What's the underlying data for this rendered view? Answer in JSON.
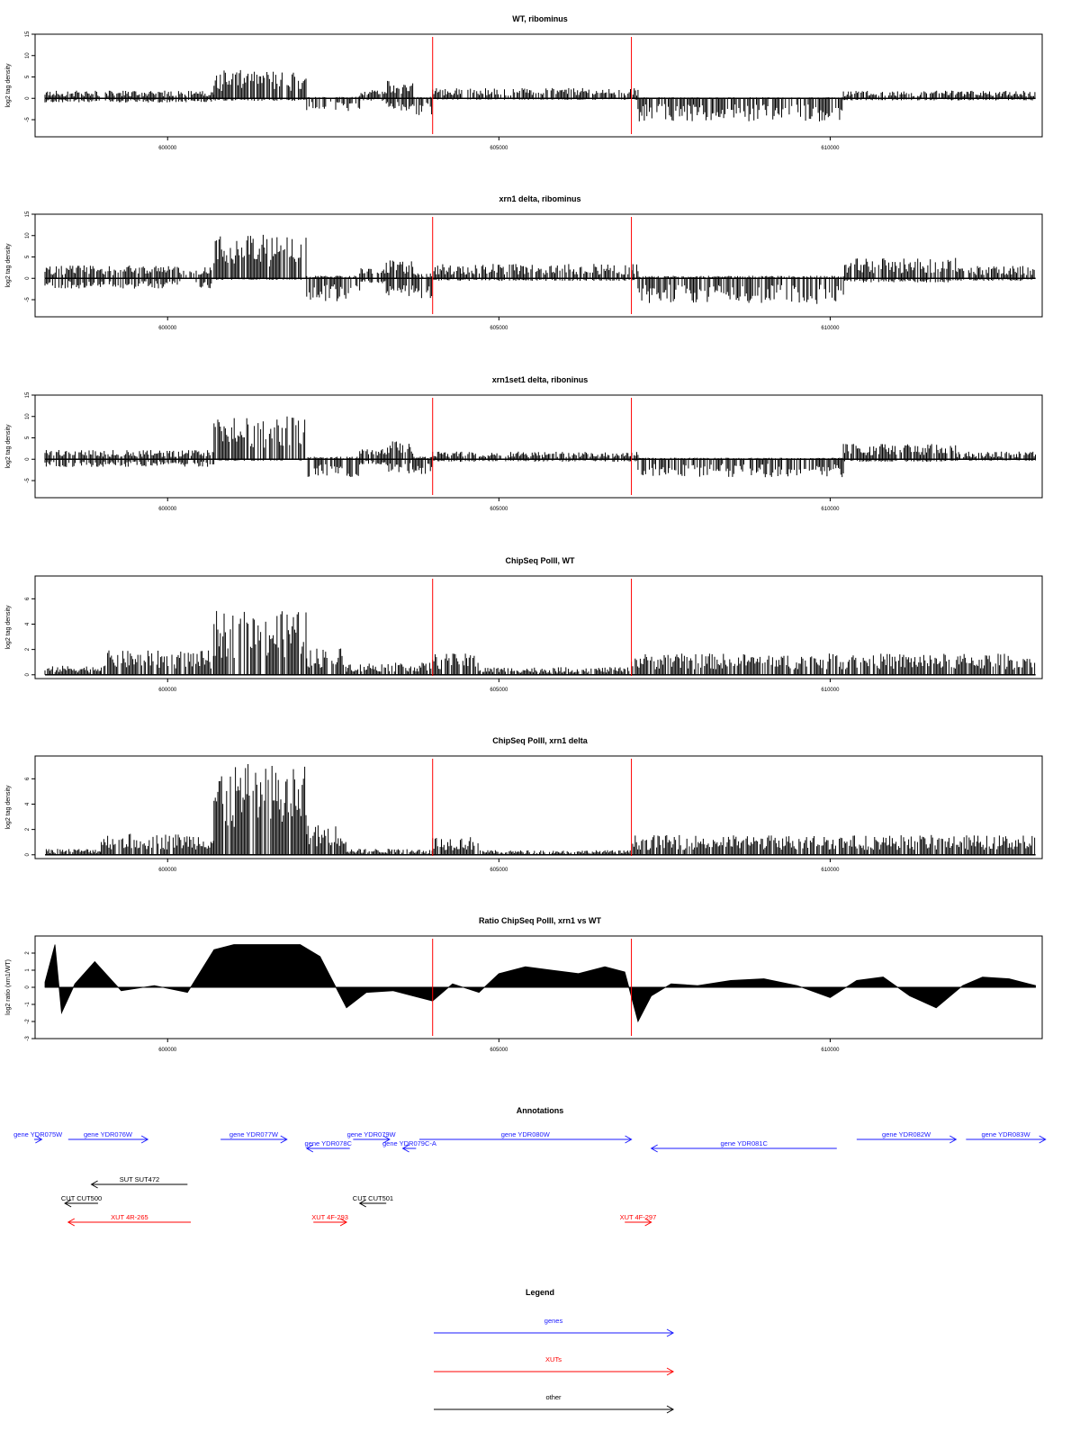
{
  "colors": {
    "marker": "#ff0000",
    "genes": "#1a1aff",
    "xuts": "#ff0000",
    "other": "#000000",
    "axis": "#000000"
  },
  "chart_data": [
    {
      "type": "bar",
      "title": "WT, ribominus",
      "ylabel": "log2 tag density",
      "xlim": [
        598000,
        613200
      ],
      "ylim": [
        -9,
        15
      ],
      "yticks": [
        -5,
        0,
        5,
        10,
        15
      ],
      "xticks": [
        600000,
        605000,
        610000
      ],
      "markers": [
        604000,
        607000
      ],
      "segments": [
        {
          "from": 598150,
          "to": 600700,
          "pos": 1.5,
          "neg": -0.8
        },
        {
          "from": 600700,
          "to": 602100,
          "pos": 5.5,
          "neg": -0.5
        },
        {
          "from": 602100,
          "to": 602900,
          "pos": 0.3,
          "neg": -2.5
        },
        {
          "from": 602900,
          "to": 603300,
          "pos": 1.8,
          "neg": -0.5
        },
        {
          "from": 603300,
          "to": 603700,
          "pos": 3.5,
          "neg": -2.5
        },
        {
          "from": 603700,
          "to": 604000,
          "pos": 0.3,
          "neg": -3.5
        },
        {
          "from": 604000,
          "to": 607100,
          "pos": 2.0,
          "neg": -0.3
        },
        {
          "from": 607100,
          "to": 610200,
          "pos": 0.2,
          "neg": -4.5
        },
        {
          "from": 610200,
          "to": 613100,
          "pos": 1.5,
          "neg": -0.4
        }
      ]
    },
    {
      "type": "bar",
      "title": "xrn1 delta, ribominus",
      "ylabel": "log2 tag density",
      "xlim": [
        598000,
        613200
      ],
      "ylim": [
        -9,
        15
      ],
      "yticks": [
        -5,
        0,
        5,
        10,
        15
      ],
      "xticks": [
        600000,
        605000,
        610000
      ],
      "markers": [
        604000,
        607000
      ],
      "segments": [
        {
          "from": 598150,
          "to": 600700,
          "pos": 2.5,
          "neg": -2.0
        },
        {
          "from": 600700,
          "to": 602100,
          "pos": 8.5,
          "neg": -0.3
        },
        {
          "from": 602100,
          "to": 602900,
          "pos": 0.5,
          "neg": -4.5
        },
        {
          "from": 602900,
          "to": 603300,
          "pos": 2.0,
          "neg": -1.0
        },
        {
          "from": 603300,
          "to": 603700,
          "pos": 3.5,
          "neg": -3.5
        },
        {
          "from": 603700,
          "to": 604000,
          "pos": 1.0,
          "neg": -4.0
        },
        {
          "from": 604000,
          "to": 607100,
          "pos": 2.8,
          "neg": -0.5
        },
        {
          "from": 607100,
          "to": 610200,
          "pos": 0.5,
          "neg": -5.0
        },
        {
          "from": 610200,
          "to": 611900,
          "pos": 4.0,
          "neg": -0.8
        },
        {
          "from": 611900,
          "to": 613100,
          "pos": 2.5,
          "neg": -0.5
        }
      ]
    },
    {
      "type": "bar",
      "title": "xrn1set1 delta, riboninus",
      "ylabel": "log2 tag density",
      "xlim": [
        598000,
        613200
      ],
      "ylim": [
        -9,
        15
      ],
      "yticks": [
        -5,
        0,
        5,
        10,
        15
      ],
      "xticks": [
        600000,
        605000,
        610000
      ],
      "markers": [
        604000,
        607000
      ],
      "segments": [
        {
          "from": 598150,
          "to": 600700,
          "pos": 1.8,
          "neg": -1.5
        },
        {
          "from": 600700,
          "to": 602100,
          "pos": 8.5,
          "neg": -0.3
        },
        {
          "from": 602100,
          "to": 602900,
          "pos": 0.5,
          "neg": -3.5
        },
        {
          "from": 602900,
          "to": 603300,
          "pos": 2.0,
          "neg": -1.0
        },
        {
          "from": 603300,
          "to": 603700,
          "pos": 3.5,
          "neg": -3.0
        },
        {
          "from": 603700,
          "to": 604000,
          "pos": 0.5,
          "neg": -3.0
        },
        {
          "from": 604000,
          "to": 607100,
          "pos": 1.5,
          "neg": -0.5
        },
        {
          "from": 607100,
          "to": 610200,
          "pos": 0.3,
          "neg": -3.5
        },
        {
          "from": 610200,
          "to": 611900,
          "pos": 3.0,
          "neg": -0.5
        },
        {
          "from": 611900,
          "to": 613100,
          "pos": 1.5,
          "neg": -0.3
        }
      ]
    },
    {
      "type": "bar",
      "title": "ChipSeq PolII, WT",
      "ylabel": "log2 tag density",
      "xlim": [
        598000,
        613200
      ],
      "ylim": [
        -0.3,
        7.8
      ],
      "yticks": [
        0,
        2,
        4,
        6
      ],
      "xticks": [
        600000,
        605000,
        610000
      ],
      "markers": [
        604000,
        607000
      ],
      "segments": [
        {
          "from": 598150,
          "to": 599000,
          "pos": 0.6,
          "neg": 0
        },
        {
          "from": 599000,
          "to": 600700,
          "pos": 1.6,
          "neg": 0
        },
        {
          "from": 600700,
          "to": 602100,
          "pos": 4.2,
          "neg": 0
        },
        {
          "from": 602100,
          "to": 602700,
          "pos": 1.8,
          "neg": 0
        },
        {
          "from": 602700,
          "to": 604000,
          "pos": 0.8,
          "neg": 0
        },
        {
          "from": 604000,
          "to": 604700,
          "pos": 1.4,
          "neg": 0
        },
        {
          "from": 604700,
          "to": 607000,
          "pos": 0.5,
          "neg": 0
        },
        {
          "from": 607000,
          "to": 613100,
          "pos": 1.4,
          "neg": 0
        }
      ]
    },
    {
      "type": "bar",
      "title": "ChipSeq PolII, xrn1 delta",
      "ylabel": "log2 tag density",
      "xlim": [
        598000,
        613200
      ],
      "ylim": [
        -0.3,
        7.8
      ],
      "yticks": [
        0,
        2,
        4,
        6
      ],
      "xticks": [
        600000,
        605000,
        610000
      ],
      "markers": [
        604000,
        607000
      ],
      "segments": [
        {
          "from": 598150,
          "to": 599000,
          "pos": 0.4,
          "neg": 0
        },
        {
          "from": 599000,
          "to": 600700,
          "pos": 1.4,
          "neg": 0
        },
        {
          "from": 600700,
          "to": 602100,
          "pos": 6.0,
          "neg": 0
        },
        {
          "from": 602100,
          "to": 602700,
          "pos": 2.0,
          "neg": 0
        },
        {
          "from": 602700,
          "to": 604000,
          "pos": 0.4,
          "neg": 0
        },
        {
          "from": 604000,
          "to": 604700,
          "pos": 1.2,
          "neg": 0
        },
        {
          "from": 604700,
          "to": 607000,
          "pos": 0.3,
          "neg": 0
        },
        {
          "from": 607000,
          "to": 613100,
          "pos": 1.3,
          "neg": 0
        }
      ]
    },
    {
      "type": "area",
      "title": "Ratio ChipSeq PolII, xrn1 vs WT",
      "ylabel": "log2 ratio (xrn1/WT)",
      "xlim": [
        598000,
        613200
      ],
      "ylim": [
        -3,
        3
      ],
      "yticks": [
        -3,
        -2,
        -1,
        0,
        1,
        2
      ],
      "xticks": [
        600000,
        605000,
        610000
      ],
      "markers": [
        604000,
        607000
      ],
      "x": [
        598150,
        598300,
        598400,
        598600,
        598900,
        599300,
        599800,
        600300,
        600700,
        601000,
        601500,
        602000,
        602300,
        602700,
        603000,
        603400,
        603700,
        604000,
        604300,
        604700,
        605000,
        605400,
        605800,
        606200,
        606600,
        606900,
        607100,
        607300,
        607600,
        608000,
        608500,
        609000,
        609500,
        610000,
        610400,
        610800,
        611200,
        611600,
        612000,
        612300,
        612700,
        613100
      ],
      "values": [
        0.3,
        2.5,
        -1.5,
        0.2,
        1.5,
        -0.2,
        0.1,
        -0.3,
        2.2,
        2.5,
        2.5,
        2.5,
        1.8,
        -1.2,
        -0.3,
        -0.2,
        -0.5,
        -0.8,
        0.2,
        -0.3,
        0.8,
        1.2,
        1.0,
        0.8,
        1.2,
        0.9,
        -2.0,
        -0.5,
        0.2,
        0.1,
        0.4,
        0.5,
        0.1,
        -0.6,
        0.4,
        0.6,
        -0.5,
        -1.2,
        0.1,
        0.6,
        0.5,
        0.1
      ]
    }
  ],
  "annotations": {
    "title": "Annotations",
    "features": [
      {
        "label": "gene YDR075W",
        "type": "gene",
        "from": 597400,
        "to": 598100,
        "dir": "right",
        "row": 0
      },
      {
        "label": "gene YDR076W",
        "type": "gene",
        "from": 598500,
        "to": 599700,
        "dir": "right",
        "row": 0
      },
      {
        "label": "gene YDR077W",
        "type": "gene",
        "from": 600800,
        "to": 601800,
        "dir": "right",
        "row": 0
      },
      {
        "label": "gene YDR078C",
        "type": "gene",
        "from": 602100,
        "to": 602750,
        "dir": "left",
        "row": 1
      },
      {
        "label": "gene YDR079W",
        "type": "gene",
        "from": 602800,
        "to": 603350,
        "dir": "right",
        "row": 0
      },
      {
        "label": "gene YDR079C-A",
        "type": "gene",
        "from": 603550,
        "to": 603750,
        "dir": "left",
        "row": 1
      },
      {
        "label": "gene YDR080W",
        "type": "gene",
        "from": 603800,
        "to": 607000,
        "dir": "right",
        "row": 0
      },
      {
        "label": "gene YDR081C",
        "type": "gene",
        "from": 607300,
        "to": 610100,
        "dir": "left",
        "row": 1
      },
      {
        "label": "gene YDR082W",
        "type": "gene",
        "from": 610400,
        "to": 611900,
        "dir": "right",
        "row": 0
      },
      {
        "label": "gene YDR083W",
        "type": "gene",
        "from": 612050,
        "to": 613250,
        "dir": "right",
        "row": 0
      },
      {
        "label": "SUT SUT472",
        "type": "other",
        "from": 598850,
        "to": 600300,
        "dir": "left",
        "row": 3
      },
      {
        "label": "CUT CUT500",
        "type": "other",
        "from": 598450,
        "to": 598950,
        "dir": "left",
        "row": 4
      },
      {
        "label": "CUT CUT501",
        "type": "other",
        "from": 602900,
        "to": 603300,
        "dir": "left",
        "row": 4
      },
      {
        "label": "XUT 4R-265",
        "type": "xut",
        "from": 598500,
        "to": 600350,
        "dir": "left",
        "row": 5
      },
      {
        "label": "XUT 4F-293",
        "type": "xut",
        "from": 602200,
        "to": 602700,
        "dir": "right",
        "row": 5
      },
      {
        "label": "XUT 4F-297",
        "type": "xut",
        "from": 606900,
        "to": 607300,
        "dir": "right",
        "row": 5
      }
    ]
  },
  "legend": {
    "title": "Legend",
    "items": [
      {
        "label": "genes",
        "type": "gene"
      },
      {
        "label": "XUTs",
        "type": "xut"
      },
      {
        "label": "other",
        "type": "other"
      }
    ]
  }
}
